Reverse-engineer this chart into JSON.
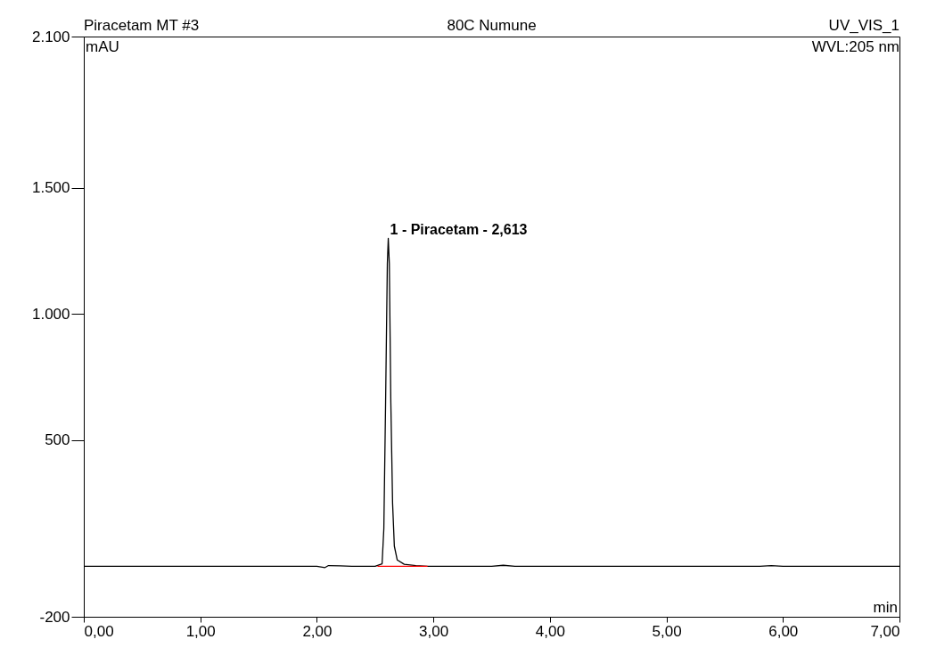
{
  "chart_data": {
    "type": "line",
    "title": "80C Numune",
    "xlabel": "min",
    "ylabel": "mAU",
    "annotations": [
      "Piracetam MT #3",
      "UV_VIS_1",
      "WVL:205 nm",
      {
        "text": "1 - Piracetam - 2,613",
        "x": 2.613,
        "y": 1300
      }
    ],
    "series": [
      {
        "color": "#000000",
        "x": [
          0,
          1.0,
          2.0,
          2.07,
          2.1,
          2.2,
          2.3,
          2.5,
          2.56,
          2.575,
          2.59,
          2.605,
          2.613,
          2.622,
          2.635,
          2.65,
          2.665,
          2.69,
          2.75,
          2.85,
          2.95,
          3.5,
          3.6,
          3.7,
          5.8,
          5.9,
          6.0,
          7.0
        ],
        "values": [
          0,
          0,
          0,
          -5,
          3,
          2,
          0,
          0,
          10,
          150,
          650,
          1200,
          1300,
          1200,
          650,
          250,
          80,
          25,
          8,
          3,
          0,
          0,
          4,
          0,
          0,
          3,
          0,
          0
        ]
      },
      {
        "color": "#ff0000",
        "x": [
          2.52,
          2.95
        ],
        "values": [
          0,
          0
        ]
      }
    ],
    "xlim": [
      0,
      7
    ],
    "ylim": [
      -200,
      2100
    ],
    "xticks": [
      {
        "value": 0,
        "label": "0,00"
      },
      {
        "value": 1,
        "label": "1,00"
      },
      {
        "value": 2,
        "label": "2,00"
      },
      {
        "value": 3,
        "label": "3,00"
      },
      {
        "value": 4,
        "label": "4,00"
      },
      {
        "value": 5,
        "label": "5,00"
      },
      {
        "value": 6,
        "label": "6,00"
      },
      {
        "value": 7,
        "label": "7,00"
      }
    ],
    "yticks": [
      -200,
      500,
      {
        "value": 1000,
        "label": "1.000"
      },
      {
        "value": 1500,
        "label": "1.500"
      },
      {
        "value": 2100,
        "label": "2.100"
      }
    ],
    "grid": false,
    "marker": "none",
    "line_style": "solid"
  }
}
